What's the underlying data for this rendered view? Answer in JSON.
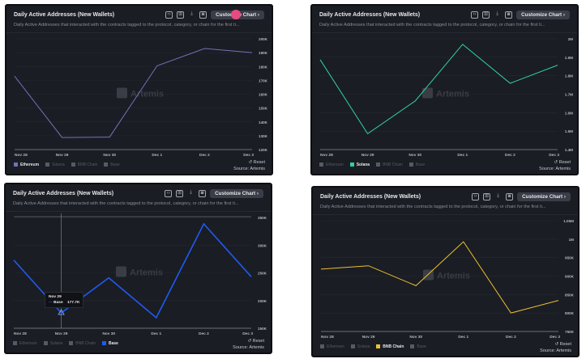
{
  "common": {
    "title": "Daily Active Addresses (New Wallets)",
    "subtitle": "Daily Active Addresses that interacted with the contracts tagged to the protocol, category, or chain for the first ti...",
    "customize_label": "Customize Chart",
    "customize_chevron": "›",
    "reset_label": "↺ Reset",
    "source_label": "Source: Artemis",
    "watermark": "Artemis",
    "legend": [
      "Ethereum",
      "Solana",
      "BNB Chain",
      "Base"
    ],
    "icons": [
      "embed-icon",
      "table-icon",
      "download-icon",
      "camera-icon"
    ]
  },
  "chart_data": [
    {
      "type": "line",
      "categories": [
        "Nov 28",
        "Nov 29",
        "Nov 30",
        "Dec 1",
        "Dec 2",
        "Dec 3"
      ],
      "series": [
        {
          "name": "Ethereum",
          "values": [
            173000,
            128700,
            129000,
            180500,
            193000,
            190000
          ],
          "color": "#6f73b8"
        }
      ],
      "ylim": [
        120000,
        200000
      ],
      "yticks": [
        "120K",
        "130K",
        "140K",
        "150K",
        "160K",
        "170K",
        "180K",
        "190K",
        "200K"
      ],
      "grid": true,
      "legend": "bottom-left",
      "active_legend": 0
    },
    {
      "type": "line",
      "categories": [
        "Nov 28",
        "Nov 29",
        "Nov 30",
        "Dec 1",
        "Dec 2",
        "Dec 3"
      ],
      "series": [
        {
          "name": "Solana",
          "values": [
            1887000,
            1486000,
            1663000,
            1970000,
            1759000,
            1857000
          ],
          "color": "#2fd39a"
        }
      ],
      "ylim": [
        1400000,
        2000000
      ],
      "yticks": [
        "1.4M",
        "1.5M",
        "1.6M",
        "1.7M",
        "1.8M",
        "1.9M",
        "2M"
      ],
      "grid": true,
      "legend": "bottom-left",
      "active_legend": 1
    },
    {
      "type": "line",
      "categories": [
        "Nov 28",
        "Nov 29",
        "Nov 30",
        "Dec 1",
        "Dec 2",
        "Dec 3"
      ],
      "series": [
        {
          "name": "Base",
          "values": [
            273000,
            177700,
            241000,
            169000,
            338500,
            243000
          ],
          "color": "#1f5bf0"
        }
      ],
      "ylim": [
        150000,
        350000
      ],
      "yticks": [
        "150K",
        "200K",
        "250K",
        "300K",
        "350K"
      ],
      "grid": true,
      "legend": "bottom-left",
      "active_legend": 3,
      "tooltip": {
        "date": "Nov 29",
        "series": "Base",
        "value": "177.7K",
        "index": 1
      }
    },
    {
      "type": "line",
      "categories": [
        "Nov 28",
        "Nov 29",
        "Nov 30",
        "Dec 1",
        "Dec 2",
        "Dec 3"
      ],
      "series": [
        {
          "name": "BNB Chain",
          "values": [
            919000,
            928000,
            874000,
            993000,
            800000,
            834000
          ],
          "color": "#e8c22e"
        }
      ],
      "ylim": [
        750000,
        1050000
      ],
      "yticks": [
        "750K",
        "800K",
        "850K",
        "900K",
        "950K",
        "1M",
        "1.05M"
      ],
      "grid": true,
      "legend": "bottom-left",
      "active_legend": 2
    }
  ]
}
